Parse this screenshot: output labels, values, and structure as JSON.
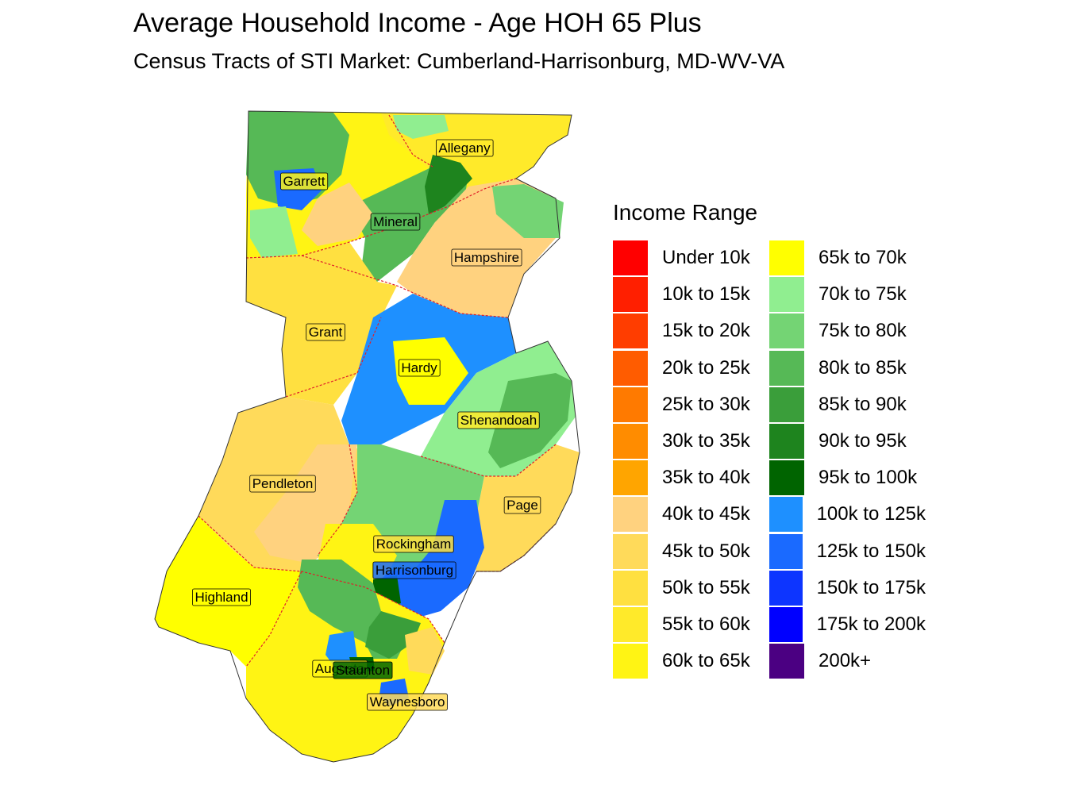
{
  "title": "Average Household Income - Age HOH 65 Plus",
  "subtitle": "Census Tracts of STI Market: Cumberland-Harrisonburg, MD-WV-VA",
  "legend": {
    "title": "Income Range",
    "items": [
      {
        "label": "Under 10k",
        "color": "#FF0000"
      },
      {
        "label": "10k to 15k",
        "color": "#FF1F00"
      },
      {
        "label": "15k to 20k",
        "color": "#FF3D00"
      },
      {
        "label": "20k to 25k",
        "color": "#FF5C00"
      },
      {
        "label": "25k to 30k",
        "color": "#FF7A00"
      },
      {
        "label": "30k to 35k",
        "color": "#FF8C00"
      },
      {
        "label": "35k to 40k",
        "color": "#FFA500"
      },
      {
        "label": "40k to 45k",
        "color": "#FFD27F"
      },
      {
        "label": "45k to 50k",
        "color": "#FFDA5A"
      },
      {
        "label": "50k to 55k",
        "color": "#FFE040"
      },
      {
        "label": "55k to 60k",
        "color": "#FFEA2A"
      },
      {
        "label": "60k to 65k",
        "color": "#FFF414"
      },
      {
        "label": "65k to 70k",
        "color": "#FFFF00"
      },
      {
        "label": "70k to 75k",
        "color": "#90EE90"
      },
      {
        "label": "75k to 80k",
        "color": "#74D474"
      },
      {
        "label": "80k to 85k",
        "color": "#56B956"
      },
      {
        "label": "85k to 90k",
        "color": "#3A9E3A"
      },
      {
        "label": "90k to 95k",
        "color": "#1E841E"
      },
      {
        "label": "95k to 100k",
        "color": "#006400"
      },
      {
        "label": "100k to 125k",
        "color": "#1E90FF"
      },
      {
        "label": "125k to 150k",
        "color": "#1A6AFF"
      },
      {
        "label": "150k to 175k",
        "color": "#0D35FF"
      },
      {
        "label": "175k to 200k",
        "color": "#0000FF"
      },
      {
        "label": "200k+",
        "color": "#4B0082"
      }
    ]
  },
  "counties": [
    {
      "name": "Allegany",
      "fill": "#FFEA2A"
    },
    {
      "name": "Garrett",
      "fill": "#FFF414"
    },
    {
      "name": "Mineral",
      "fill": "#56B956"
    },
    {
      "name": "Hampshire",
      "fill": "#FFD27F"
    },
    {
      "name": "Grant",
      "fill": "#FFE040"
    },
    {
      "name": "Hardy",
      "fill": "#FFFF00"
    },
    {
      "name": "Shenandoah",
      "fill": "#FFEA2A"
    },
    {
      "name": "Pendleton",
      "fill": "#FFDA5A"
    },
    {
      "name": "Page",
      "fill": "#FFDA5A"
    },
    {
      "name": "Rockingham",
      "fill": "#FFE040"
    },
    {
      "name": "Harrisonburg",
      "fill": "#1A6AFF"
    },
    {
      "name": "Highland",
      "fill": "#FFFF00"
    },
    {
      "name": "Augusta",
      "fill": "#FFF414"
    },
    {
      "name": "Staunton",
      "fill": "#006400"
    },
    {
      "name": "Waynesboro",
      "fill": "#FFDA5A"
    }
  ],
  "boundary_color": "#E0202A"
}
